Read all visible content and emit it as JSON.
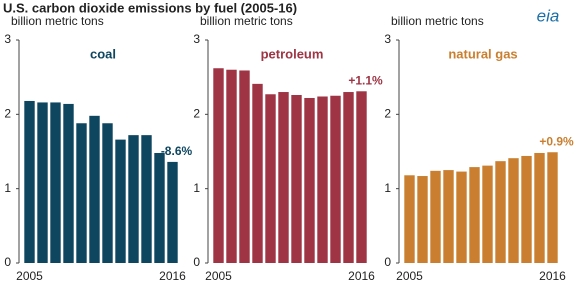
{
  "title": "U.S. carbon dioxide emissions by fuel (2005-16)",
  "logo": "eia",
  "chart_data": [
    {
      "type": "bar",
      "ylabel": "billion metric tons",
      "title": "coal",
      "annotation": "-8.6%",
      "color": "#0e4660",
      "categories": [
        "2005",
        null,
        null,
        null,
        null,
        null,
        null,
        null,
        null,
        null,
        null,
        "2016"
      ],
      "values": [
        2.18,
        2.16,
        2.16,
        2.14,
        1.88,
        1.98,
        1.88,
        1.66,
        1.72,
        1.72,
        1.48,
        1.36
      ],
      "ylim": [
        0,
        3
      ],
      "yticks": [
        0,
        1,
        2,
        3
      ],
      "grid": false
    },
    {
      "type": "bar",
      "ylabel": "billion metric tons",
      "title": "petroleum",
      "annotation": "+1.1%",
      "color": "#9e3444",
      "categories": [
        "2005",
        null,
        null,
        null,
        null,
        null,
        null,
        null,
        null,
        null,
        null,
        "2016"
      ],
      "values": [
        2.62,
        2.6,
        2.59,
        2.41,
        2.27,
        2.3,
        2.26,
        2.22,
        2.24,
        2.25,
        2.3,
        2.31
      ],
      "ylim": [
        0,
        3
      ],
      "yticks": [
        0,
        1,
        2,
        3
      ],
      "grid": false
    },
    {
      "type": "bar",
      "ylabel": "billion metric tons",
      "title": "natural gas",
      "annotation": "+0.9%",
      "color": "#c97f2f",
      "categories": [
        "2005",
        null,
        null,
        null,
        null,
        null,
        null,
        null,
        null,
        null,
        null,
        "2016"
      ],
      "values": [
        1.18,
        1.17,
        1.24,
        1.25,
        1.23,
        1.29,
        1.31,
        1.37,
        1.41,
        1.44,
        1.48,
        1.49
      ],
      "ylim": [
        0,
        3
      ],
      "yticks": [
        0,
        1,
        2,
        3
      ],
      "grid": false
    }
  ]
}
